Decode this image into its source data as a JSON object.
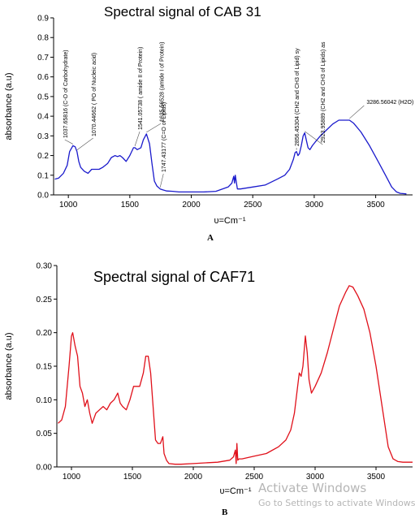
{
  "panel_labels": {
    "a": "A",
    "b": "B"
  },
  "watermark": {
    "title": "Activate Windows",
    "subtitle": "Go to Settings to activate Windows."
  },
  "chart_data": [
    {
      "type": "line",
      "title": "Spectral signal of CAB 31",
      "xlabel": "υ=Cm⁻¹",
      "ylabel": "absorbance (a.u)",
      "xlim": [
        880,
        3800
      ],
      "ylim": [
        0,
        0.9
      ],
      "xticks": [
        1000,
        1500,
        2000,
        2500,
        3000,
        3500
      ],
      "yticks": [
        0.0,
        0.1,
        0.2,
        0.3,
        0.4,
        0.5,
        0.6,
        0.7,
        0.8,
        0.9
      ],
      "ytick_decimals": 1,
      "grid": false,
      "color": "#1a1acc",
      "series": [
        {
          "x": [
            890,
            920,
            960,
            990,
            1010,
            1037,
            1055,
            1070,
            1085,
            1100,
            1130,
            1160,
            1190,
            1220,
            1250,
            1280,
            1320,
            1350,
            1380,
            1400,
            1420,
            1440,
            1470,
            1500,
            1530,
            1541,
            1560,
            1590,
            1610,
            1635,
            1660,
            1680,
            1700,
            1720,
            1747,
            1770,
            1800,
            1850,
            1900,
            2000,
            2100,
            2200,
            2300,
            2330,
            2345,
            2352,
            2358,
            2365,
            2375,
            2400,
            2500,
            2600,
            2700,
            2760,
            2800,
            2830,
            2845,
            2856,
            2868,
            2880,
            2895,
            2910,
            2923,
            2935,
            2950,
            2965,
            2985,
            3010,
            3050,
            3100,
            3150,
            3200,
            3250,
            3287,
            3320,
            3380,
            3450,
            3520,
            3580,
            3630,
            3670,
            3700,
            3730,
            3750
          ],
          "y": [
            0.08,
            0.085,
            0.11,
            0.15,
            0.22,
            0.25,
            0.245,
            0.22,
            0.17,
            0.14,
            0.12,
            0.11,
            0.13,
            0.13,
            0.13,
            0.14,
            0.16,
            0.19,
            0.2,
            0.195,
            0.2,
            0.19,
            0.17,
            0.2,
            0.24,
            0.24,
            0.23,
            0.24,
            0.28,
            0.31,
            0.26,
            0.16,
            0.07,
            0.045,
            0.03,
            0.025,
            0.02,
            0.018,
            0.015,
            0.015,
            0.015,
            0.018,
            0.04,
            0.06,
            0.095,
            0.06,
            0.1,
            0.07,
            0.03,
            0.03,
            0.04,
            0.05,
            0.08,
            0.1,
            0.13,
            0.18,
            0.215,
            0.22,
            0.2,
            0.21,
            0.25,
            0.3,
            0.315,
            0.28,
            0.24,
            0.23,
            0.25,
            0.27,
            0.3,
            0.33,
            0.36,
            0.38,
            0.38,
            0.38,
            0.365,
            0.32,
            0.25,
            0.17,
            0.1,
            0.04,
            0.015,
            0.008,
            0.006,
            0.005
          ]
        }
      ],
      "annotations": [
        {
          "text": "1037.65816 (C-O of Carbohydrate)",
          "x": 1037,
          "y": 0.25
        },
        {
          "text": "1070.44662 ( PO of  Nucleic acid)",
          "x": 1070,
          "y": 0.22
        },
        {
          "text": "1541.05738 ( amide II of Protein)",
          "x": 1541,
          "y": 0.24
        },
        {
          "text": "1635.56528 (amide I of  Protein)",
          "x": 1635,
          "y": 0.31
        },
        {
          "text": "1747.43177 (C=O of Lipids)",
          "x": 1747,
          "y": 0.03
        },
        {
          "text": "2856.45304 (CH2 and CH3 of Lipid) sy",
          "x": 2856,
          "y": 0.22
        },
        {
          "text": "2923.95889 (CH2 and CH3 of Lipids) as",
          "x": 2923,
          "y": 0.315
        },
        {
          "text": "3286.56042 (H2O)",
          "x": 3287,
          "y": 0.38
        }
      ]
    },
    {
      "type": "line",
      "title": "Spectral signal of CAF71",
      "xlabel": "υ=Cm⁻¹",
      "ylabel": "absorbance (a.u)",
      "xlim": [
        880,
        3800
      ],
      "ylim": [
        0,
        0.3
      ],
      "xticks": [
        1000,
        1500,
        2000,
        2500,
        3000,
        3500
      ],
      "yticks": [
        0.0,
        0.05,
        0.1,
        0.15,
        0.2,
        0.25,
        0.3
      ],
      "ytick_decimals": 2,
      "grid": false,
      "color": "#e0101a",
      "series": [
        {
          "x": [
            890,
            920,
            950,
            980,
            1000,
            1010,
            1030,
            1050,
            1070,
            1090,
            1110,
            1130,
            1150,
            1170,
            1200,
            1230,
            1260,
            1290,
            1320,
            1350,
            1380,
            1400,
            1420,
            1450,
            1480,
            1510,
            1530,
            1560,
            1590,
            1610,
            1630,
            1650,
            1670,
            1690,
            1710,
            1730,
            1750,
            1760,
            1780,
            1800,
            1850,
            1900,
            2000,
            2100,
            2200,
            2300,
            2330,
            2345,
            2352,
            2358,
            2365,
            2375,
            2400,
            2500,
            2600,
            2700,
            2760,
            2800,
            2830,
            2850,
            2870,
            2885,
            2900,
            2920,
            2935,
            2950,
            2970,
            3000,
            3050,
            3100,
            3150,
            3200,
            3250,
            3280,
            3310,
            3350,
            3400,
            3450,
            3500,
            3550,
            3600,
            3640,
            3680,
            3720,
            3760,
            3800
          ],
          "y": [
            0.065,
            0.07,
            0.09,
            0.15,
            0.195,
            0.2,
            0.18,
            0.165,
            0.12,
            0.11,
            0.09,
            0.1,
            0.08,
            0.065,
            0.08,
            0.085,
            0.09,
            0.085,
            0.095,
            0.1,
            0.11,
            0.095,
            0.09,
            0.085,
            0.1,
            0.12,
            0.12,
            0.12,
            0.14,
            0.165,
            0.165,
            0.14,
            0.09,
            0.04,
            0.035,
            0.035,
            0.045,
            0.02,
            0.01,
            0.005,
            0.004,
            0.004,
            0.005,
            0.006,
            0.007,
            0.01,
            0.015,
            0.025,
            0.005,
            0.035,
            0.01,
            0.012,
            0.012,
            0.016,
            0.02,
            0.03,
            0.04,
            0.055,
            0.08,
            0.11,
            0.14,
            0.135,
            0.15,
            0.195,
            0.17,
            0.13,
            0.11,
            0.12,
            0.14,
            0.17,
            0.205,
            0.24,
            0.26,
            0.27,
            0.268,
            0.255,
            0.235,
            0.2,
            0.15,
            0.09,
            0.03,
            0.012,
            0.008,
            0.007,
            0.007,
            0.007
          ]
        }
      ]
    }
  ]
}
